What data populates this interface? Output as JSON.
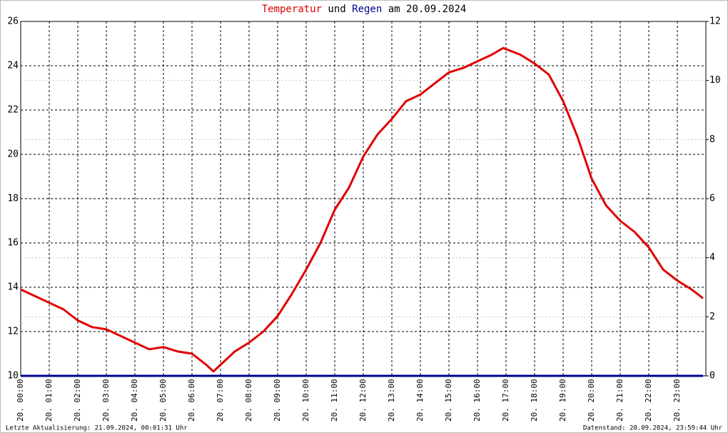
{
  "chart_data": {
    "type": "line",
    "title_joiner": "und",
    "title_suffix": "am 20.09.2024",
    "x": [
      0,
      0.5,
      1,
      1.5,
      2,
      2.5,
      3,
      3.5,
      4,
      4.5,
      5,
      5.5,
      6,
      6.5,
      6.75,
      7,
      7.5,
      8,
      8.5,
      9,
      9.5,
      10,
      10.5,
      11,
      11.5,
      12,
      12.5,
      13,
      13.5,
      14,
      14.5,
      15,
      15.5,
      16,
      16.5,
      16.9,
      17.5,
      18,
      18.5,
      19,
      19.5,
      20,
      20.5,
      21,
      21.5,
      22,
      22.5,
      23,
      23.5,
      23.9
    ],
    "series": [
      {
        "name": "Temperatur",
        "color": "#e00000",
        "values": [
          13.9,
          13.6,
          13.3,
          13.0,
          12.5,
          12.2,
          12.1,
          11.8,
          11.5,
          11.2,
          11.3,
          11.1,
          11.0,
          10.5,
          10.2,
          10.5,
          11.1,
          11.5,
          12.0,
          12.7,
          13.7,
          14.8,
          16.0,
          17.5,
          18.5,
          19.9,
          20.9,
          21.6,
          22.4,
          22.7,
          23.2,
          23.7,
          23.9,
          24.2,
          24.5,
          24.8,
          24.5,
          24.1,
          23.6,
          22.4,
          20.8,
          18.9,
          17.7,
          17.0,
          16.5,
          15.8,
          14.8,
          14.3,
          13.9,
          13.5
        ]
      },
      {
        "name": "Regen",
        "color": "#000090",
        "axis": "y2",
        "values": [
          0,
          0,
          0,
          0,
          0,
          0,
          0,
          0,
          0,
          0,
          0,
          0,
          0,
          0,
          0,
          0,
          0,
          0,
          0,
          0,
          0,
          0,
          0,
          0,
          0,
          0,
          0,
          0,
          0,
          0,
          0,
          0,
          0,
          0,
          0,
          0,
          0,
          0,
          0,
          0,
          0,
          0,
          0,
          0,
          0,
          0,
          0,
          0,
          0,
          0
        ]
      }
    ],
    "xlim": [
      0,
      24
    ],
    "xticks": [
      {
        "value": 0,
        "label": "20. 00:00"
      },
      {
        "value": 1,
        "label": "20. 01:00"
      },
      {
        "value": 2,
        "label": "20. 02:00"
      },
      {
        "value": 3,
        "label": "20. 03:00"
      },
      {
        "value": 4,
        "label": "20. 04:00"
      },
      {
        "value": 5,
        "label": "20. 05:00"
      },
      {
        "value": 6,
        "label": "20. 06:00"
      },
      {
        "value": 7,
        "label": "20. 07:00"
      },
      {
        "value": 8,
        "label": "20. 08:00"
      },
      {
        "value": 9,
        "label": "20. 09:00"
      },
      {
        "value": 10,
        "label": "20. 10:00"
      },
      {
        "value": 11,
        "label": "20. 11:00"
      },
      {
        "value": 12,
        "label": "20. 12:00"
      },
      {
        "value": 13,
        "label": "20. 13:00"
      },
      {
        "value": 14,
        "label": "20. 14:00"
      },
      {
        "value": 15,
        "label": "20. 15:00"
      },
      {
        "value": 16,
        "label": "20. 16:00"
      },
      {
        "value": 17,
        "label": "20. 17:00"
      },
      {
        "value": 18,
        "label": "20. 18:00"
      },
      {
        "value": 19,
        "label": "20. 19:00"
      },
      {
        "value": 20,
        "label": "20. 20:00"
      },
      {
        "value": 21,
        "label": "20. 21:00"
      },
      {
        "value": 22,
        "label": "20. 22:00"
      },
      {
        "value": 23,
        "label": "20. 23:00"
      }
    ],
    "ylim": [
      10,
      26
    ],
    "yticks": [
      10,
      12,
      14,
      16,
      18,
      20,
      22,
      24,
      26
    ],
    "y2lim": [
      0,
      12
    ],
    "y2ticks": [
      0,
      2,
      4,
      6,
      8,
      10,
      12
    ],
    "y2color": "#00cc00",
    "grid": true,
    "footnote_left": "Letzte Aktualisierung: 21.09.2024, 00:01:31 Uhr",
    "footnote_right": "Datenstand: 20.09.2024, 23:59:44 Uhr"
  }
}
